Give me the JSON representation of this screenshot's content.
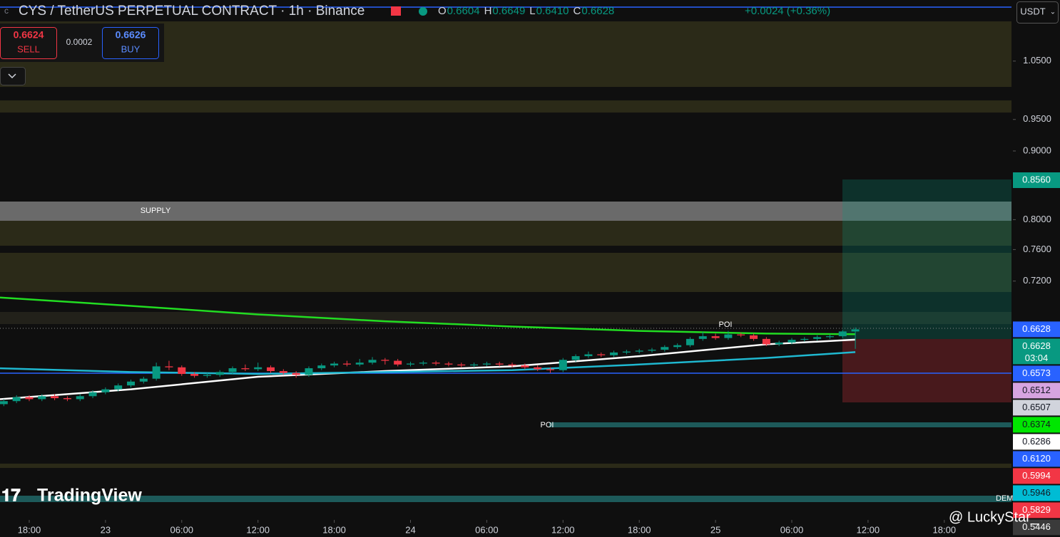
{
  "header": {
    "title": "CYS / TetherUS PERPETUAL CONTRACT · 1h · Binance",
    "ohlc": [
      {
        "key": "O",
        "value": "0.6604"
      },
      {
        "key": "H",
        "value": "0.6649"
      },
      {
        "key": "L",
        "value": "0.6410"
      },
      {
        "key": "C",
        "value": "0.6628"
      }
    ],
    "change": "+0.0024 (+0.36%)"
  },
  "trade": {
    "sell_price": "0.6624",
    "sell": "SELL",
    "spread": "0.0002",
    "buy_price": "0.6626",
    "buy": "BUY"
  },
  "currency": "USDT",
  "watermark": "TradingView",
  "signature": "@ LuckyStar_",
  "annotations": [
    "SUPPLY",
    "POI",
    "POI",
    "DEM"
  ],
  "chart_data": {
    "type": "candlestick",
    "log_scale": true,
    "up_color": "#089981",
    "down_color": "#f23645",
    "xlim": [
      -0.3,
      79.4
    ],
    "ylim": [
      0.478,
      1.166
    ],
    "xticks": [
      {
        "value": 2,
        "label": "18:00"
      },
      {
        "value": 8,
        "label": "23"
      },
      {
        "value": 14,
        "label": "06:00"
      },
      {
        "value": 20,
        "label": "12:00"
      },
      {
        "value": 26,
        "label": "18:00"
      },
      {
        "value": 32,
        "label": "24"
      },
      {
        "value": 38,
        "label": "06:00"
      },
      {
        "value": 44,
        "label": "12:00"
      },
      {
        "value": 50,
        "label": "18:00"
      },
      {
        "value": 56,
        "label": "25"
      },
      {
        "value": 62,
        "label": "06:00"
      },
      {
        "value": 68,
        "label": "12:00"
      },
      {
        "value": 74,
        "label": "18:00"
      }
    ],
    "yticks": [
      {
        "value": 1.05,
        "label": "1.0500"
      },
      {
        "value": 0.95,
        "label": "0.9500"
      },
      {
        "value": 0.9,
        "label": "0.9000"
      },
      {
        "value": 0.8,
        "label": "0.8000"
      },
      {
        "value": 0.76,
        "label": "0.7600"
      },
      {
        "value": 0.72,
        "label": "0.7200"
      }
    ],
    "open": [
      0.583,
      0.586,
      0.59,
      0.588,
      0.591,
      0.589,
      0.588,
      0.591,
      0.595,
      0.598,
      0.602,
      0.606,
      0.609,
      0.622,
      0.621,
      0.614,
      0.612,
      0.613,
      0.616,
      0.62,
      0.619,
      0.621,
      0.617,
      0.615,
      0.613,
      0.62,
      0.623,
      0.625,
      0.624,
      0.626,
      0.629,
      0.628,
      0.624,
      0.625,
      0.626,
      0.625,
      0.624,
      0.623,
      0.624,
      0.625,
      0.624,
      0.623,
      0.621,
      0.619,
      0.618,
      0.629,
      0.633,
      0.635,
      0.634,
      0.637,
      0.638,
      0.639,
      0.64,
      0.643,
      0.645,
      0.652,
      0.655,
      0.653,
      0.657,
      0.656,
      0.652,
      0.646,
      0.648,
      0.651,
      0.652,
      0.654,
      0.655,
      0.6604
    ],
    "high": [
      0.588,
      0.592,
      0.592,
      0.593,
      0.593,
      0.591,
      0.593,
      0.597,
      0.6,
      0.604,
      0.608,
      0.611,
      0.626,
      0.628,
      0.623,
      0.616,
      0.615,
      0.618,
      0.622,
      0.624,
      0.626,
      0.623,
      0.619,
      0.617,
      0.622,
      0.625,
      0.627,
      0.628,
      0.63,
      0.632,
      0.631,
      0.63,
      0.627,
      0.628,
      0.628,
      0.627,
      0.626,
      0.626,
      0.627,
      0.627,
      0.626,
      0.625,
      0.623,
      0.621,
      0.631,
      0.635,
      0.638,
      0.637,
      0.639,
      0.64,
      0.641,
      0.642,
      0.645,
      0.647,
      0.654,
      0.66,
      0.658,
      0.661,
      0.659,
      0.658,
      0.654,
      0.65,
      0.653,
      0.654,
      0.656,
      0.657,
      0.662,
      0.6649
    ],
    "low": [
      0.581,
      0.584,
      0.586,
      0.586,
      0.587,
      0.586,
      0.586,
      0.589,
      0.593,
      0.596,
      0.6,
      0.604,
      0.607,
      0.618,
      0.612,
      0.61,
      0.61,
      0.611,
      0.614,
      0.617,
      0.617,
      0.615,
      0.613,
      0.61,
      0.611,
      0.618,
      0.621,
      0.622,
      0.622,
      0.624,
      0.624,
      0.622,
      0.622,
      0.623,
      0.623,
      0.622,
      0.621,
      0.621,
      0.622,
      0.622,
      0.621,
      0.619,
      0.617,
      0.615,
      0.616,
      0.627,
      0.631,
      0.632,
      0.632,
      0.635,
      0.636,
      0.637,
      0.638,
      0.641,
      0.643,
      0.65,
      0.651,
      0.651,
      0.654,
      0.65,
      0.644,
      0.644,
      0.646,
      0.649,
      0.65,
      0.652,
      0.653,
      0.641
    ],
    "close": [
      0.586,
      0.59,
      0.588,
      0.591,
      0.589,
      0.588,
      0.591,
      0.595,
      0.598,
      0.602,
      0.606,
      0.609,
      0.622,
      0.621,
      0.614,
      0.612,
      0.613,
      0.616,
      0.62,
      0.619,
      0.621,
      0.617,
      0.615,
      0.613,
      0.62,
      0.623,
      0.625,
      0.624,
      0.626,
      0.629,
      0.628,
      0.624,
      0.625,
      0.626,
      0.625,
      0.624,
      0.623,
      0.624,
      0.625,
      0.624,
      0.623,
      0.621,
      0.619,
      0.618,
      0.629,
      0.633,
      0.635,
      0.634,
      0.637,
      0.638,
      0.639,
      0.64,
      0.643,
      0.645,
      0.652,
      0.655,
      0.653,
      0.657,
      0.656,
      0.652,
      0.646,
      0.648,
      0.651,
      0.652,
      0.654,
      0.655,
      0.6604,
      0.6628
    ],
    "lines": [
      {
        "color": "#22dd22",
        "x": [
          -0.3,
          10,
          20,
          30,
          40,
          50,
          60,
          67
        ],
        "values": [
          0.7,
          0.69,
          0.68,
          0.672,
          0.666,
          0.661,
          0.658,
          0.6573
        ]
      },
      {
        "color": "#ffffff",
        "x": [
          -0.3,
          10,
          20,
          30,
          40,
          50,
          60,
          67
        ],
        "values": [
          0.588,
          0.598,
          0.611,
          0.617,
          0.622,
          0.633,
          0.646,
          0.6512
        ]
      },
      {
        "color": "#1fb8d0",
        "x": [
          -0.3,
          10,
          20,
          30,
          40,
          50,
          60,
          67
        ],
        "values": [
          0.62,
          0.616,
          0.614,
          0.616,
          0.618,
          0.624,
          0.631,
          0.6374
        ]
      }
    ],
    "price_tags": [
      {
        "value": 0.856,
        "label": "0.8560",
        "color": "#089981",
        "text_color": "#ffffff"
      },
      {
        "value": 0.6628,
        "label": "0.6628",
        "color": "#2962ff",
        "text_color": "#ffffff"
      },
      {
        "value": 0.6628,
        "label": "0.6628",
        "color": "#089981",
        "text_color": "#ffffff",
        "countdown": "03:04"
      },
      {
        "value": 0.6573,
        "label": "0.6573",
        "color": "#2962ff",
        "text_color": "#ffffff"
      },
      {
        "value": 0.6512,
        "label": "0.6512",
        "color": "#d6a4e0",
        "text_color": "#131722"
      },
      {
        "value": 0.6507,
        "label": "0.6507",
        "color": "#d1d4dc",
        "text_color": "#131722"
      },
      {
        "value": 0.6374,
        "label": "0.6374",
        "color": "#00e600",
        "text_color": "#131722"
      },
      {
        "value": 0.6286,
        "label": "0.6286",
        "color": "#ffffff",
        "text_color": "#131722"
      },
      {
        "value": 0.612,
        "label": "0.6120",
        "color": "#2962ff",
        "text_color": "#ffffff"
      },
      {
        "value": 0.5994,
        "label": "0.5994",
        "color": "#f23645",
        "text_color": "#ffffff"
      },
      {
        "value": 0.5946,
        "label": "0.5946",
        "color": "#00bcd4",
        "text_color": "#131722"
      },
      {
        "value": 0.5829,
        "label": "0.5829",
        "color": "#f23645",
        "text_color": "#ffffff"
      },
      {
        "value": 0.5446,
        "label": "0.5446",
        "color": "#3a3a3a",
        "text_color": "#ffffff"
      }
    ]
  }
}
